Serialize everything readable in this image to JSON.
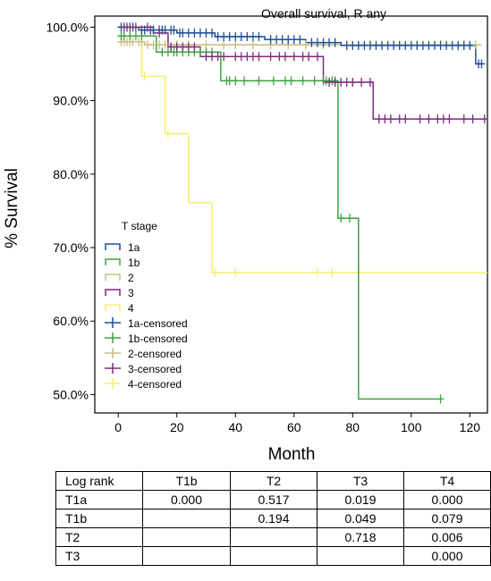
{
  "chart_data": {
    "type": "line",
    "title": "Overall survival, R any",
    "xlabel": "Month",
    "ylabel": "% Survival",
    "xlim": [
      -8,
      126
    ],
    "ylim": [
      47.5,
      101.5
    ],
    "x_ticks": [
      0,
      20,
      40,
      60,
      80,
      100,
      120
    ],
    "y_ticks": [
      50,
      60,
      70,
      80,
      90,
      100
    ],
    "y_tick_labels": [
      "50.0%",
      "60.0%",
      "70.0%",
      "80.0%",
      "90.0%",
      "100.0%"
    ],
    "grid": false,
    "legend": {
      "title": "T stage",
      "placement": "center-left",
      "entries": [
        "1a",
        "1b",
        "2",
        "3",
        "4",
        "1a-censored",
        "1b-censored",
        "2-censored",
        "3-censored",
        "4-censored"
      ]
    },
    "series": [
      {
        "name": "1a",
        "color": "#1f4e96",
        "steps": [
          [
            0,
            100
          ],
          [
            7,
            99.6
          ],
          [
            20,
            99.2
          ],
          [
            33,
            98.7
          ],
          [
            50,
            98.3
          ],
          [
            64,
            97.9
          ],
          [
            76,
            97.5
          ],
          [
            122,
            95
          ]
        ],
        "end_x": 124,
        "censored": [
          1,
          3,
          5,
          8,
          9,
          11,
          12,
          14,
          15,
          16,
          18,
          19,
          21,
          22,
          24,
          26,
          28,
          30,
          32,
          34,
          36,
          38,
          40,
          42,
          44,
          46,
          48,
          52,
          54,
          56,
          58,
          60,
          62,
          66,
          68,
          70,
          72,
          74,
          78,
          80,
          82,
          84,
          86,
          88,
          90,
          92,
          94,
          96,
          98,
          100,
          102,
          104,
          106,
          108,
          110,
          112,
          114,
          116,
          118,
          120,
          123,
          124
        ]
      },
      {
        "name": "1b",
        "color": "#3da33d",
        "steps": [
          [
            0,
            98.8
          ],
          [
            13,
            96.6
          ],
          [
            35,
            92.7
          ],
          [
            75,
            74
          ],
          [
            82,
            49.4
          ]
        ],
        "end_x": 110,
        "censored": [
          1,
          2,
          4,
          6,
          8,
          15,
          17,
          19,
          20,
          22,
          24,
          26,
          28,
          30,
          32,
          37,
          38,
          40,
          43,
          48,
          53,
          57,
          59,
          63,
          67,
          70,
          71,
          73,
          74,
          76,
          79,
          110
        ]
      },
      {
        "name": "2",
        "color": "#c8bd82",
        "steps": [
          [
            0,
            98
          ],
          [
            9,
            97.6
          ]
        ],
        "end_x": 124,
        "censored": [
          1,
          2,
          3,
          4,
          5,
          7,
          8,
          10,
          12,
          14,
          16,
          20,
          24,
          30,
          36,
          40,
          46,
          52,
          58,
          64,
          70,
          78,
          86,
          94,
          102,
          110,
          118,
          122
        ]
      },
      {
        "name": "3",
        "color": "#7d2a7d",
        "steps": [
          [
            0,
            100
          ],
          [
            12,
            99.2
          ],
          [
            17,
            97.3
          ],
          [
            28,
            96
          ],
          [
            70,
            92.5
          ],
          [
            87,
            87.5
          ]
        ],
        "end_x": 126,
        "censored": [
          2,
          4,
          6,
          10,
          14,
          18,
          20,
          22,
          24,
          26,
          30,
          32,
          34,
          36,
          40,
          42,
          44,
          46,
          48,
          52,
          55,
          57,
          60,
          63,
          65,
          68,
          72,
          74,
          76,
          78,
          80,
          83,
          86,
          89,
          91,
          93,
          96,
          98,
          103,
          106,
          109,
          111,
          113,
          118,
          121,
          125
        ]
      },
      {
        "name": "4",
        "color": "#f5ee6f",
        "steps": [
          [
            0,
            100
          ],
          [
            8,
            93.3
          ],
          [
            16,
            85.5
          ],
          [
            24,
            76.1
          ],
          [
            32,
            66.6
          ]
        ],
        "end_x": 126,
        "censored": [
          9,
          17,
          33,
          40,
          68,
          73
        ]
      }
    ]
  },
  "table": {
    "header": [
      "Log rank",
      "T1b",
      "T2",
      "T3",
      "T4"
    ],
    "rows": [
      [
        "T1a",
        "0.000",
        "0.517",
        "0.019",
        "0.000"
      ],
      [
        "T1b",
        "",
        "0.194",
        "0.049",
        "0.079"
      ],
      [
        "T2",
        "",
        "",
        "0.718",
        "0.006"
      ],
      [
        "T3",
        "",
        "",
        "",
        "0.000"
      ]
    ]
  }
}
